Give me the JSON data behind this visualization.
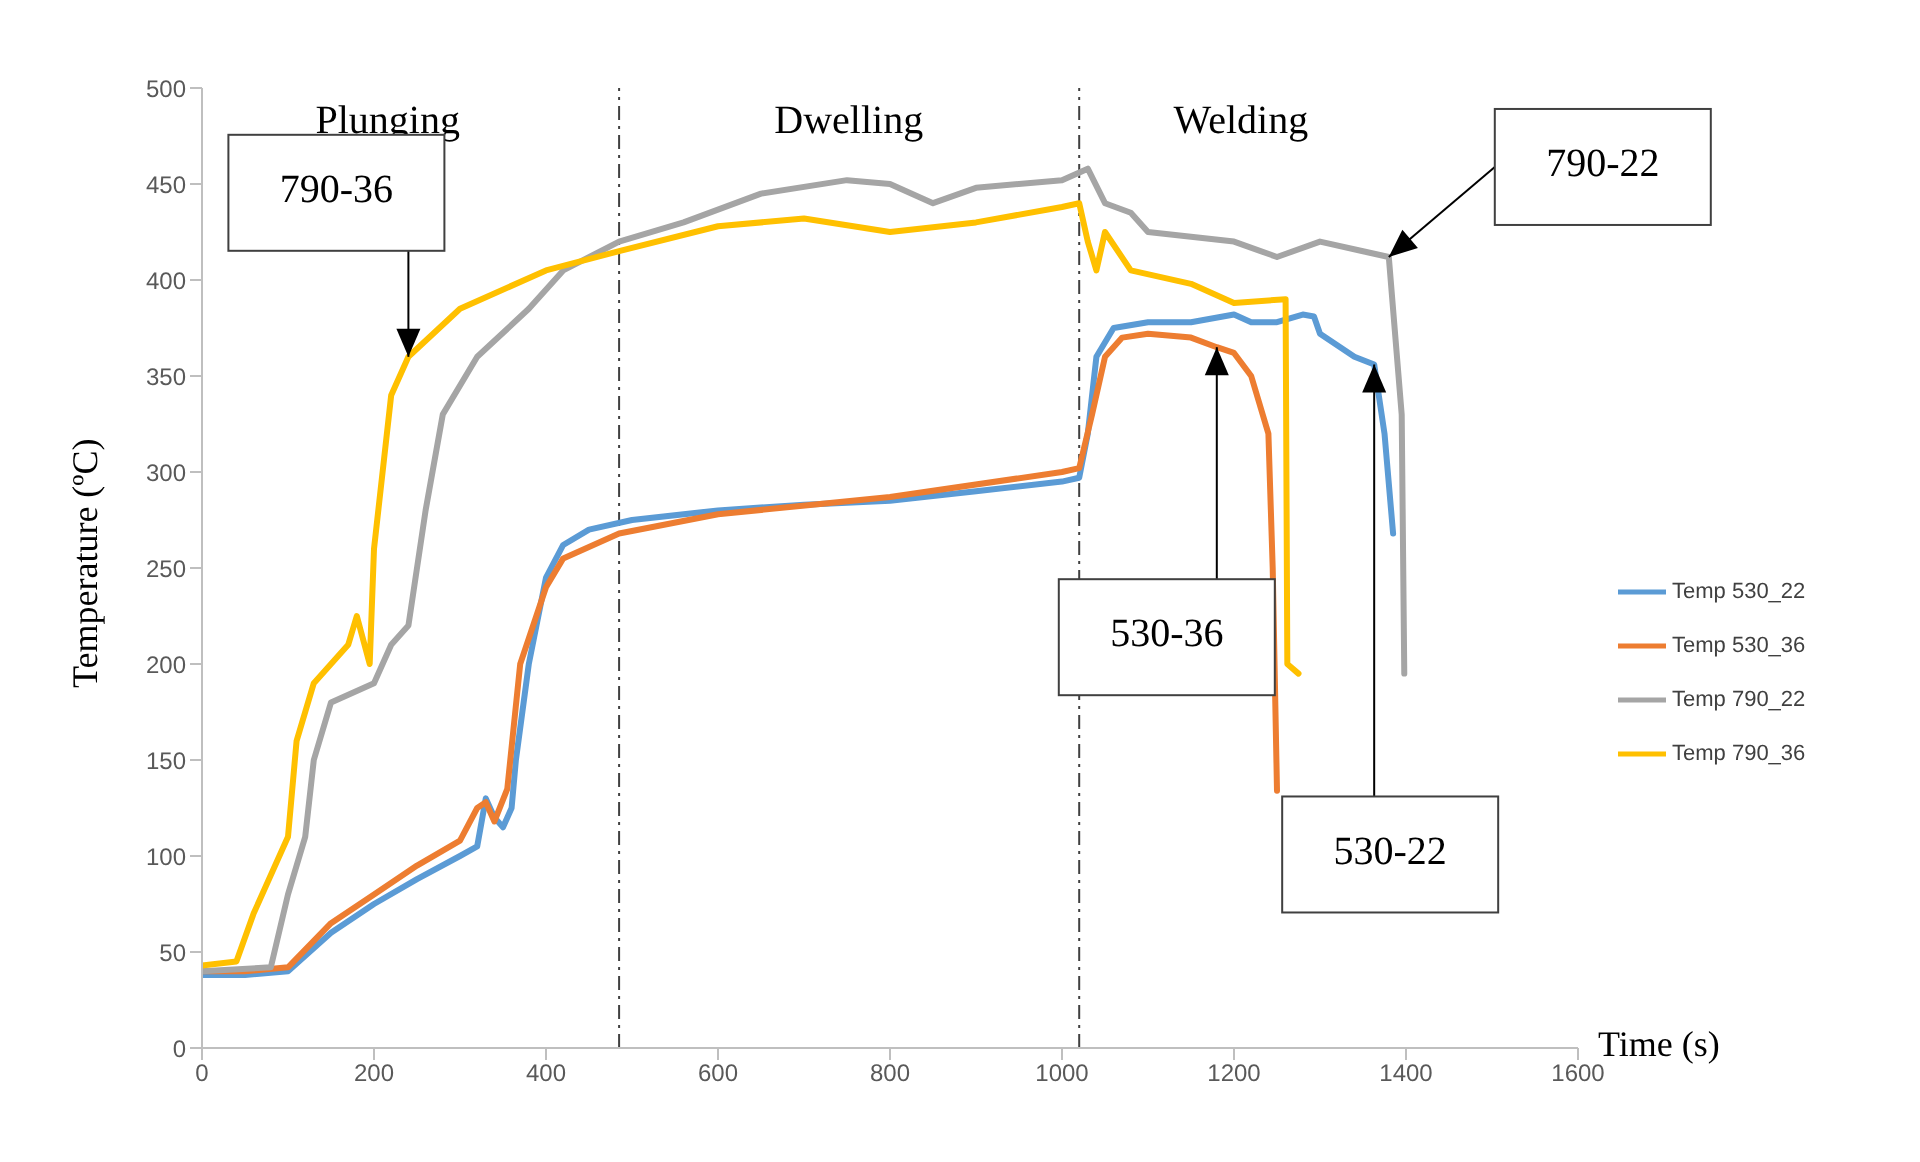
{
  "chart_data": {
    "type": "line",
    "xlabel": "Time (s)",
    "ylabel": "Temperature (ºC)",
    "xlim": [
      0,
      1600
    ],
    "xticks": [
      0,
      200,
      400,
      600,
      800,
      1000,
      1200,
      1400,
      1600
    ],
    "ylim": [
      0,
      500
    ],
    "yticks": [
      0,
      50,
      100,
      150,
      200,
      250,
      300,
      350,
      400,
      450,
      500
    ],
    "grid": false,
    "legend": "right",
    "marker": "none",
    "line_style": "solid",
    "series": [
      {
        "name": "Temp 530_22",
        "color": "#5b9bd5",
        "x": [
          0,
          50,
          100,
          150,
          200,
          250,
          300,
          320,
          330,
          340,
          350,
          360,
          365,
          380,
          400,
          420,
          450,
          500,
          600,
          700,
          800,
          900,
          1000,
          1020,
          1030,
          1040,
          1060,
          1100,
          1150,
          1200,
          1220,
          1250,
          1280,
          1293,
          1300,
          1340,
          1363,
          1375,
          1385
        ],
        "values": [
          38,
          38,
          40,
          60,
          75,
          88,
          100,
          105,
          130,
          120,
          115,
          125,
          150,
          200,
          245,
          262,
          270,
          275,
          280,
          283,
          285,
          290,
          295,
          297,
          320,
          360,
          375,
          378,
          378,
          382,
          378,
          378,
          382,
          381,
          372,
          360,
          356,
          320,
          268
        ]
      },
      {
        "name": "Temp 530_36",
        "color": "#ed7d31",
        "x": [
          0,
          50,
          100,
          150,
          200,
          250,
          300,
          320,
          330,
          340,
          355,
          370,
          400,
          420,
          485,
          600,
          800,
          1000,
          1020,
          1035,
          1050,
          1070,
          1100,
          1150,
          1180,
          1200,
          1220,
          1240,
          1245,
          1250
        ],
        "values": [
          40,
          40,
          42,
          65,
          80,
          95,
          108,
          125,
          128,
          118,
          135,
          200,
          240,
          255,
          268,
          278,
          287,
          300,
          302,
          330,
          360,
          370,
          372,
          370,
          365,
          362,
          350,
          320,
          250,
          134
        ]
      },
      {
        "name": "Temp 790_22",
        "color": "#a5a5a5",
        "x": [
          0,
          80,
          100,
          120,
          130,
          150,
          200,
          220,
          240,
          260,
          280,
          320,
          380,
          420,
          485,
          560,
          650,
          750,
          800,
          850,
          900,
          1000,
          1030,
          1050,
          1080,
          1100,
          1200,
          1250,
          1300,
          1350,
          1380,
          1395,
          1398
        ],
        "values": [
          40,
          42,
          80,
          110,
          150,
          180,
          190,
          210,
          220,
          280,
          330,
          360,
          385,
          405,
          420,
          430,
          445,
          452,
          450,
          440,
          448,
          452,
          458,
          440,
          435,
          425,
          420,
          412,
          420,
          415,
          412,
          330,
          195
        ]
      },
      {
        "name": "Temp 790_36",
        "color": "#ffc000",
        "x": [
          0,
          40,
          60,
          100,
          110,
          130,
          170,
          180,
          195,
          200,
          220,
          240,
          300,
          400,
          485,
          600,
          700,
          800,
          900,
          1000,
          1020,
          1030,
          1040,
          1050,
          1080,
          1150,
          1200,
          1260,
          1262,
          1275
        ],
        "values": [
          43,
          45,
          70,
          110,
          160,
          190,
          210,
          225,
          200,
          260,
          340,
          360,
          385,
          405,
          415,
          428,
          432,
          425,
          430,
          438,
          440,
          420,
          405,
          425,
          405,
          398,
          388,
          390,
          200,
          195
        ]
      }
    ],
    "ref_lines": [
      {
        "axis": "x",
        "value": 485,
        "color": "#404040",
        "line_style": "dashed"
      },
      {
        "axis": "x",
        "value": 1020,
        "color": "#404040",
        "line_style": "dashed"
      }
    ],
    "annotations": [
      "Plunging",
      "Dwelling",
      "Welding",
      {
        "text": "790-36",
        "x": 240,
        "y": 360
      },
      {
        "text": "790-22",
        "x": 1380,
        "y": 412
      },
      {
        "text": "530-36",
        "x": 1180,
        "y": 365
      },
      {
        "text": "530-22",
        "x": 1363,
        "y": 356
      }
    ]
  }
}
